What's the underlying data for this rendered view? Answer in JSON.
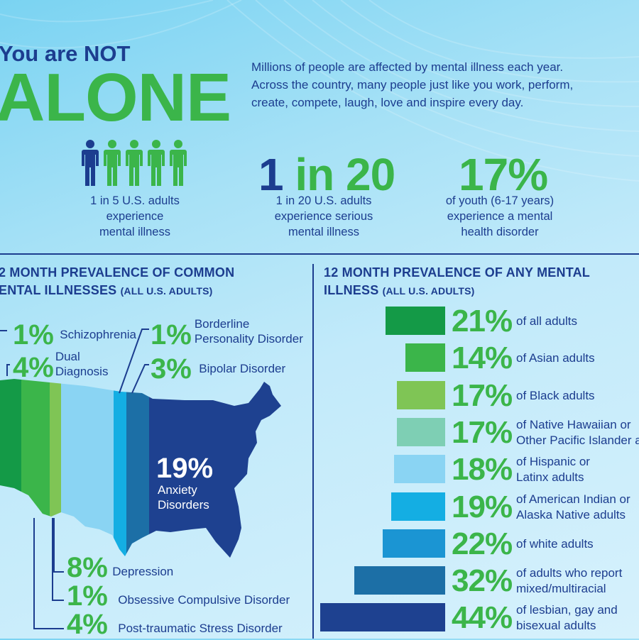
{
  "header": {
    "line1": "You are NOT",
    "line2": "ALONE",
    "intro": [
      "Millions of people are affected by mental illness each year.",
      "Across the country, many people just like you work, perform,",
      "create, compete, laugh, love and inspire every day."
    ]
  },
  "stats": [
    {
      "value": "",
      "caption": [
        "1 in 5 U.S. adults",
        "experience",
        "mental illness"
      ]
    },
    {
      "value": "1 in 20",
      "caption": [
        "1 in 20 U.S. adults",
        "experience serious",
        "mental illness"
      ]
    },
    {
      "value": "17%",
      "caption": [
        "of youth (6-17 years)",
        "experience a mental",
        "health disorder"
      ]
    }
  ],
  "left_section": {
    "title_line1": "2 MONTH PREVALENCE OF COMMON",
    "title_line2": "ENTAL ILLNESSES",
    "title_note": "(ALL U.S. ADULTS)",
    "labels": [
      {
        "pct": "1%",
        "text": [
          "Schizophrenia"
        ]
      },
      {
        "pct": "4%",
        "text": [
          "Dual",
          "Diagnosis"
        ]
      },
      {
        "pct": "1%",
        "text": [
          "Borderline",
          "Personality Disorder"
        ]
      },
      {
        "pct": "3%",
        "text": [
          "Bipolar Disorder"
        ]
      },
      {
        "pct": "19%",
        "text": [
          "Anxiety",
          "Disorders"
        ]
      },
      {
        "pct": "8%",
        "text": [
          "Depression"
        ]
      },
      {
        "pct": "1%",
        "text": [
          "Obsessive Compulsive Disorder"
        ]
      },
      {
        "pct": "4%",
        "text": [
          "Post-traumatic Stress Disorder"
        ]
      }
    ]
  },
  "right_section": {
    "title_line1": "12 MONTH PREVALENCE OF ANY MENTAL",
    "title_line2": "ILLNESS",
    "title_note": "(ALL U.S. ADULTS)",
    "rows": [
      {
        "value": 21,
        "pct": "21%",
        "label": [
          "of all adults"
        ],
        "color": "#149a47"
      },
      {
        "value": 14,
        "pct": "14%",
        "label": [
          "of Asian adults"
        ],
        "color": "#3bb54a"
      },
      {
        "value": 17,
        "pct": "17%",
        "label": [
          "of Black adults"
        ],
        "color": "#7fc555"
      },
      {
        "value": 17,
        "pct": "17%",
        "label": [
          "of Native Hawaiian or",
          "Other Pacific Islander ad"
        ],
        "color": "#7ecfb4"
      },
      {
        "value": 18,
        "pct": "18%",
        "label": [
          "of Hispanic or",
          "Latinx adults"
        ],
        "color": "#8ad4f3"
      },
      {
        "value": 19,
        "pct": "19%",
        "label": [
          "of American Indian or",
          "Alaska Native adults"
        ],
        "color": "#14aee3"
      },
      {
        "value": 22,
        "pct": "22%",
        "label": [
          "of white adults"
        ],
        "color": "#1b95d3"
      },
      {
        "value": 32,
        "pct": "32%",
        "label": [
          "of adults who report",
          "mixed/multiracial"
        ],
        "color": "#1c6fa6"
      },
      {
        "value": 44,
        "pct": "44%",
        "label": [
          "of lesbian, gay and",
          "bisexual adults"
        ],
        "color": "#1e4190"
      }
    ]
  },
  "colors": {
    "navy": "#1c3d8f",
    "green": "#3bb54a",
    "map_bands": [
      "#149a47",
      "#3bb54a",
      "#7fc555",
      "#8ad4f3",
      "#14aee3",
      "#1c6fa6",
      "#1e4190"
    ]
  }
}
